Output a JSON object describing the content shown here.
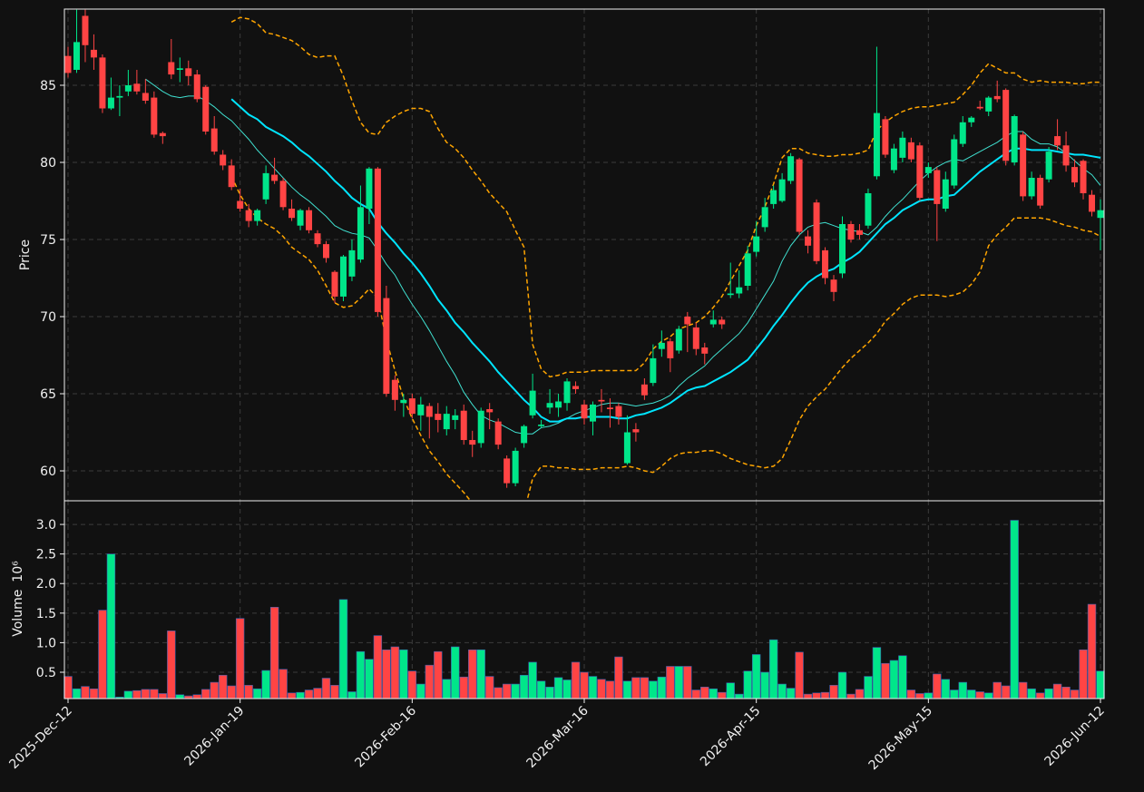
{
  "chart_data": {
    "type": "candlestick",
    "ylabel": "Price",
    "ylim": [
      58.06,
      89.94
    ],
    "yticks": [
      60,
      65,
      70,
      75,
      80,
      85
    ],
    "grid": true,
    "up_color": "#00e68a",
    "down_color": "#ff4444",
    "categories": [
      "2025-Dec-12",
      null,
      null,
      null,
      null,
      null,
      null,
      null,
      null,
      null,
      null,
      null,
      null,
      null,
      null,
      null,
      null,
      null,
      null,
      null,
      "2026-Jan-19",
      null,
      null,
      null,
      null,
      null,
      null,
      null,
      null,
      null,
      null,
      null,
      null,
      null,
      null,
      null,
      null,
      null,
      null,
      null,
      "2026-Feb-16",
      null,
      null,
      null,
      null,
      null,
      null,
      null,
      null,
      null,
      null,
      null,
      null,
      null,
      null,
      null,
      null,
      null,
      null,
      null,
      "2026-Mar-16",
      null,
      null,
      null,
      null,
      null,
      null,
      null,
      null,
      null,
      null,
      null,
      null,
      null,
      null,
      null,
      null,
      null,
      null,
      null,
      "2026-Apr-15",
      null,
      null,
      null,
      null,
      null,
      null,
      null,
      null,
      null,
      null,
      null,
      null,
      null,
      null,
      null,
      null,
      null,
      null,
      null,
      "2026-May-15",
      null,
      null,
      null,
      null,
      null,
      null,
      null,
      null,
      null,
      null,
      null,
      null,
      null,
      null,
      null,
      null,
      null,
      null,
      null,
      "2026-Jun-12"
    ],
    "open": [
      86.9,
      86.0,
      89.5,
      87.3,
      86.8,
      83.5,
      84.2,
      84.6,
      85.1,
      84.5,
      84.2,
      81.9,
      86.5,
      86.0,
      86.1,
      85.7,
      84.9,
      82.2,
      80.5,
      79.8,
      77.5,
      76.9,
      76.2,
      77.6,
      79.2,
      78.8,
      77.0,
      75.9,
      76.9,
      75.4,
      74.7,
      72.9,
      71.3,
      72.6,
      73.7,
      77.0,
      79.6,
      71.2,
      65.9,
      64.4,
      64.7,
      63.6,
      64.2,
      63.7,
      62.7,
      63.3,
      63.9,
      62.0,
      61.8,
      64.0,
      63.2,
      60.8,
      59.2,
      61.8,
      63.6,
      62.9,
      64.1,
      64.1,
      64.4,
      65.5,
      64.3,
      63.2,
      64.6,
      64.1,
      64.2,
      60.5,
      62.7,
      65.6,
      65.7,
      67.9,
      68.4,
      67.8,
      70.0,
      69.3,
      68.0,
      69.5,
      69.8,
      71.4,
      71.5,
      72.0,
      74.2,
      75.8,
      77.3,
      77.5,
      78.8,
      80.2,
      75.2,
      77.4,
      74.3,
      72.4,
      72.8,
      76.0,
      75.6,
      75.9,
      79.1,
      82.8,
      79.5,
      80.3,
      81.3,
      81.1,
      79.3,
      79.5,
      77.0,
      78.5,
      81.2,
      82.6,
      83.6,
      83.3,
      84.3,
      84.7,
      80.0,
      81.8,
      77.8,
      79.0,
      78.9,
      81.7,
      81.1,
      79.7,
      80.1,
      77.9,
      76.4
    ],
    "high": [
      87.5,
      89.9,
      89.9,
      88.3,
      87.0,
      85.5,
      85.0,
      86.0,
      86.0,
      85.4,
      84.6,
      82.0,
      88.0,
      86.8,
      86.6,
      86.0,
      85.0,
      83.0,
      80.8,
      80.2,
      78.3,
      77.3,
      77.0,
      79.8,
      80.3,
      79.0,
      77.6,
      77.0,
      77.1,
      75.6,
      74.9,
      73.0,
      74.0,
      75.0,
      78.5,
      79.7,
      79.7,
      72.0,
      66.2,
      65.0,
      65.0,
      64.8,
      64.4,
      64.4,
      64.2,
      64.0,
      64.3,
      62.6,
      64.1,
      64.4,
      63.4,
      61.0,
      61.5,
      63.0,
      66.3,
      63.3,
      65.3,
      65.0,
      66.0,
      65.8,
      64.6,
      64.5,
      65.3,
      64.7,
      64.4,
      63.6,
      63.1,
      66.0,
      68.2,
      69.1,
      68.6,
      69.4,
      70.3,
      69.6,
      68.3,
      70.4,
      70.0,
      73.5,
      73.0,
      74.6,
      76.2,
      77.7,
      78.5,
      79.3,
      80.6,
      80.3,
      75.6,
      77.6,
      74.5,
      72.7,
      76.5,
      76.2,
      76.0,
      78.3,
      87.5,
      83.0,
      81.2,
      82.0,
      81.6,
      81.3,
      80.0,
      79.7,
      79.4,
      81.8,
      83.0,
      83.0,
      84.0,
      84.3,
      85.3,
      84.8,
      83.1,
      82.0,
      79.4,
      79.2,
      81.0,
      82.8,
      82.0,
      80.2,
      80.2,
      78.2,
      77.6
    ],
    "low": [
      85.5,
      85.8,
      86.5,
      86.0,
      83.2,
      83.4,
      83.0,
      84.3,
      84.4,
      83.8,
      81.6,
      81.2,
      85.4,
      85.2,
      85.0,
      83.9,
      81.8,
      80.5,
      79.5,
      78.2,
      76.8,
      75.8,
      75.9,
      77.3,
      78.6,
      76.9,
      76.2,
      75.6,
      75.4,
      74.5,
      73.5,
      70.9,
      71.0,
      72.3,
      73.5,
      76.0,
      70.0,
      64.8,
      63.9,
      63.5,
      63.4,
      62.6,
      62.1,
      62.5,
      62.3,
      62.7,
      61.7,
      60.9,
      61.5,
      62.7,
      61.4,
      58.9,
      59.0,
      61.5,
      63.4,
      62.8,
      63.7,
      63.5,
      63.9,
      65.0,
      63.0,
      62.3,
      63.8,
      62.8,
      63.0,
      60.4,
      61.9,
      64.6,
      65.5,
      67.4,
      66.4,
      67.6,
      67.7,
      67.5,
      66.9,
      69.3,
      69.2,
      71.2,
      71.2,
      71.7,
      73.9,
      75.5,
      77.0,
      77.4,
      78.6,
      75.3,
      74.1,
      73.4,
      72.1,
      71.0,
      72.5,
      74.8,
      75.0,
      75.7,
      78.9,
      80.3,
      79.3,
      80.0,
      80.0,
      77.5,
      79.0,
      74.9,
      76.8,
      78.3,
      81.0,
      82.3,
      83.4,
      83.0,
      83.9,
      79.8,
      79.8,
      77.5,
      77.6,
      77.0,
      78.7,
      80.8,
      79.4,
      78.4,
      77.6,
      76.5,
      74.3
    ],
    "close": [
      85.8,
      87.8,
      87.6,
      86.8,
      83.5,
      84.2,
      84.3,
      85.0,
      84.6,
      84.0,
      81.8,
      81.7,
      85.7,
      86.1,
      85.6,
      84.1,
      82.0,
      80.7,
      79.8,
      78.4,
      77.0,
      76.2,
      76.9,
      79.3,
      78.8,
      77.1,
      76.4,
      76.9,
      75.6,
      74.7,
      73.8,
      71.3,
      73.9,
      74.3,
      77.1,
      79.6,
      70.3,
      65.0,
      64.6,
      64.6,
      63.7,
      64.3,
      63.5,
      63.3,
      63.7,
      63.6,
      62.0,
      61.7,
      63.9,
      63.8,
      61.7,
      59.2,
      61.3,
      62.9,
      65.2,
      63.0,
      64.4,
      64.5,
      65.8,
      65.3,
      63.4,
      64.3,
      64.5,
      64.0,
      63.5,
      62.5,
      62.5,
      64.9,
      67.3,
      68.3,
      67.3,
      69.2,
      69.5,
      67.9,
      67.6,
      69.8,
      69.5,
      71.5,
      71.9,
      74.1,
      75.2,
      77.1,
      78.2,
      78.9,
      80.4,
      75.5,
      74.6,
      73.6,
      72.5,
      71.6,
      76.0,
      75.0,
      75.3,
      78.0,
      83.2,
      80.5,
      80.9,
      81.6,
      80.2,
      77.7,
      79.7,
      77.3,
      78.9,
      81.5,
      82.6,
      82.9,
      83.5,
      84.2,
      84.1,
      80.1,
      83.0,
      77.8,
      79.0,
      77.2,
      80.7,
      81.1,
      79.8,
      78.7,
      78.0,
      76.8,
      76.9
    ],
    "series": [
      {
        "color": "#40e0d0",
        "width": 1,
        "dashed": false,
        "values": [
          null,
          null,
          null,
          null,
          null,
          null,
          null,
          null,
          null,
          85.4,
          85.0,
          84.6,
          84.3,
          84.2,
          84.3,
          84.3,
          84.0,
          83.6,
          83.1,
          82.7,
          82.1,
          81.5,
          80.8,
          80.2,
          79.6,
          79.0,
          78.4,
          77.9,
          77.5,
          77.0,
          76.5,
          75.9,
          75.6,
          75.4,
          75.3,
          75.1,
          74.3,
          73.4,
          72.7,
          71.7,
          70.8,
          70.0,
          69.1,
          68.1,
          67.1,
          66.2,
          65.1,
          64.3,
          63.6,
          63.3,
          63.1,
          62.8,
          62.5,
          62.4,
          62.4,
          62.8,
          62.9,
          63.1,
          63.4,
          63.7,
          63.9,
          64.1,
          64.3,
          64.4,
          64.4,
          64.3,
          64.2,
          64.3,
          64.4,
          64.6,
          64.9,
          65.5,
          66.0,
          66.4,
          66.8,
          67.4,
          67.9,
          68.4,
          68.9,
          69.6,
          70.5,
          71.4,
          72.3,
          73.6,
          74.6,
          75.3,
          75.8,
          76.0,
          76.1,
          75.9,
          75.7,
          75.6,
          75.5,
          75.3,
          75.8,
          76.5,
          77.1,
          77.6,
          78.2,
          78.8,
          79.3,
          79.7,
          80.0,
          80.2,
          80.1,
          80.4,
          80.7,
          81.0,
          81.3,
          81.7,
          82.0,
          82.0,
          81.5,
          81.2,
          81.2,
          81.0,
          80.6,
          80.1,
          79.6,
          79.2,
          78.5
        ]
      },
      {
        "color": "#00e5ff",
        "width": 2,
        "dashed": false,
        "values": [
          null,
          null,
          null,
          null,
          null,
          null,
          null,
          null,
          null,
          null,
          null,
          null,
          null,
          null,
          null,
          null,
          null,
          null,
          null,
          84.1,
          83.6,
          83.1,
          82.8,
          82.3,
          82.0,
          81.7,
          81.3,
          80.8,
          80.4,
          79.9,
          79.4,
          78.8,
          78.3,
          77.7,
          77.3,
          77.0,
          76.1,
          75.4,
          74.8,
          74.1,
          73.5,
          72.8,
          72.0,
          71.1,
          70.4,
          69.6,
          69.0,
          68.3,
          67.7,
          67.1,
          66.4,
          65.8,
          65.2,
          64.6,
          64.1,
          63.5,
          63.2,
          63.2,
          63.4,
          63.4,
          63.5,
          63.5,
          63.5,
          63.5,
          63.4,
          63.4,
          63.6,
          63.7,
          63.9,
          64.1,
          64.4,
          64.8,
          65.2,
          65.4,
          65.5,
          65.8,
          66.1,
          66.4,
          66.8,
          67.2,
          67.9,
          68.6,
          69.4,
          70.1,
          70.9,
          71.6,
          72.2,
          72.6,
          72.9,
          73.1,
          73.5,
          73.8,
          74.2,
          74.8,
          75.4,
          76.0,
          76.4,
          76.9,
          77.2,
          77.5,
          77.6,
          77.6,
          77.8,
          77.9,
          78.4,
          78.9,
          79.4,
          79.8,
          80.2,
          80.6,
          80.9,
          80.9,
          80.8,
          80.8,
          80.8,
          80.7,
          80.6,
          80.5,
          80.5,
          80.4,
          80.3
        ]
      },
      {
        "color": "#ffa500",
        "width": 1.5,
        "dashed": true,
        "values": [
          null,
          null,
          null,
          null,
          null,
          null,
          null,
          null,
          null,
          null,
          null,
          null,
          null,
          null,
          null,
          null,
          null,
          null,
          null,
          89.1,
          89.4,
          89.3,
          89.0,
          88.4,
          88.3,
          88.1,
          87.9,
          87.5,
          87.0,
          86.8,
          86.9,
          86.9,
          85.6,
          84.0,
          82.6,
          81.9,
          81.8,
          82.6,
          83.0,
          83.3,
          83.5,
          83.5,
          83.3,
          82.2,
          81.3,
          80.9,
          80.3,
          79.5,
          78.8,
          78.0,
          77.4,
          76.8,
          75.6,
          74.5,
          68.2,
          66.6,
          66.1,
          66.2,
          66.4,
          66.4,
          66.4,
          66.5,
          66.5,
          66.5,
          66.5,
          66.5,
          66.5,
          67.0,
          67.9,
          68.4,
          68.7,
          69.2,
          69.4,
          69.6,
          70.0,
          70.6,
          71.3,
          72.3,
          73.3,
          74.3,
          75.9,
          77.1,
          78.6,
          80.3,
          80.9,
          80.9,
          80.6,
          80.5,
          80.4,
          80.4,
          80.5,
          80.5,
          80.6,
          80.8,
          82.1,
          82.6,
          83.0,
          83.3,
          83.5,
          83.6,
          83.6,
          83.7,
          83.8,
          83.9,
          84.4,
          85.0,
          85.8,
          86.4,
          86.1,
          85.8,
          85.8,
          85.4,
          85.2,
          85.3,
          85.2,
          85.2,
          85.2,
          85.1,
          85.1,
          85.2,
          85.2
        ]
      },
      {
        "color": "#ffa500",
        "width": 1.5,
        "dashed": true,
        "values": [
          null,
          null,
          null,
          null,
          null,
          null,
          null,
          null,
          null,
          null,
          null,
          null,
          null,
          null,
          null,
          null,
          null,
          null,
          null,
          79.1,
          77.9,
          77.0,
          76.4,
          76.0,
          75.7,
          75.2,
          74.5,
          74.1,
          73.7,
          73.0,
          72.0,
          70.9,
          70.6,
          70.7,
          71.2,
          71.8,
          71.2,
          68.5,
          66.5,
          64.7,
          63.4,
          62.3,
          61.3,
          60.6,
          59.8,
          59.2,
          58.6,
          57.9,
          57.2,
          56.6,
          56.0,
          55.8,
          56.5,
          57.3,
          59.5,
          60.3,
          60.3,
          60.2,
          60.2,
          60.1,
          60.1,
          60.1,
          60.2,
          60.2,
          60.2,
          60.3,
          60.2,
          60.0,
          59.9,
          60.3,
          60.8,
          61.1,
          61.2,
          61.2,
          61.3,
          61.3,
          61.1,
          60.8,
          60.6,
          60.4,
          60.3,
          60.2,
          60.3,
          60.8,
          62.0,
          63.3,
          64.2,
          64.8,
          65.3,
          66.0,
          66.7,
          67.3,
          67.8,
          68.3,
          68.9,
          69.7,
          70.2,
          70.8,
          71.2,
          71.4,
          71.4,
          71.4,
          71.3,
          71.4,
          71.6,
          72.1,
          72.9,
          74.6,
          75.3,
          75.8,
          76.4,
          76.4,
          76.4,
          76.4,
          76.3,
          76.1,
          75.9,
          75.8,
          75.6,
          75.5,
          75.2
        ]
      }
    ],
    "volume": {
      "ylabel": "Volume",
      "offset_label": "10⁶",
      "ylim": [
        0.055,
        3.4
      ],
      "yticks": [
        0.5,
        {
          "value": 1,
          "label": "1.0"
        },
        1.5,
        {
          "value": 2,
          "label": "2.0"
        },
        2.5,
        {
          "value": 3,
          "label": "3.0"
        }
      ],
      "values": [
        0.43,
        0.22,
        0.26,
        0.22,
        1.55,
        2.5,
        0.08,
        0.18,
        0.19,
        0.21,
        0.21,
        0.14,
        1.2,
        0.12,
        0.1,
        0.12,
        0.21,
        0.33,
        0.45,
        0.27,
        1.41,
        0.28,
        0.22,
        0.53,
        1.6,
        0.55,
        0.15,
        0.16,
        0.2,
        0.23,
        0.4,
        0.28,
        1.73,
        0.17,
        0.85,
        0.72,
        1.12,
        0.88,
        0.93,
        0.88,
        0.52,
        0.3,
        0.62,
        0.85,
        0.38,
        0.93,
        0.42,
        0.88,
        0.88,
        0.43,
        0.24,
        0.3,
        0.3,
        0.45,
        0.67,
        0.35,
        0.25,
        0.41,
        0.37,
        0.67,
        0.5,
        0.43,
        0.38,
        0.35,
        0.76,
        0.35,
        0.41,
        0.41,
        0.35,
        0.42,
        0.6,
        0.6,
        0.6,
        0.2,
        0.25,
        0.22,
        0.16,
        0.32,
        0.13,
        0.52,
        0.8,
        0.5,
        1.05,
        0.3,
        0.23,
        0.84,
        0.13,
        0.15,
        0.16,
        0.28,
        0.5,
        0.13,
        0.21,
        0.43,
        0.92,
        0.65,
        0.7,
        0.78,
        0.2,
        0.14,
        0.15,
        0.47,
        0.38,
        0.2,
        0.33,
        0.2,
        0.17,
        0.15,
        0.33,
        0.27,
        3.07,
        0.33,
        0.22,
        0.15,
        0.22,
        0.3,
        0.25,
        0.2,
        0.88,
        1.65,
        0.52
      ]
    }
  }
}
